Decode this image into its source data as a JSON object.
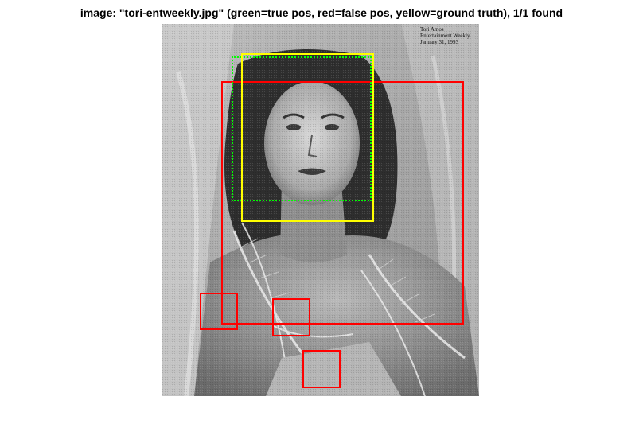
{
  "figure": {
    "title": "image: \"tori-entweekly.jpg\" (green=true pos, red=false pos, yellow=ground truth), 1/1 found"
  },
  "photo": {
    "credit_lines": [
      "Tori Amos",
      "Entertainment Weekly",
      "January 31, 1993"
    ]
  },
  "detections": {
    "true_positive_color": "#00ff00",
    "false_positive_color": "#ff0000",
    "ground_truth_color": "#ffff00"
  },
  "icons": [
    "portrait-photo"
  ]
}
